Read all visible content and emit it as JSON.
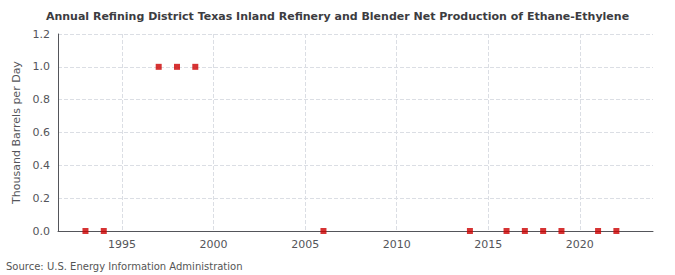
{
  "chart_data": {
    "type": "scatter",
    "title": "Annual Refining District Texas Inland Refinery and Blender Net Production of Ethane-Ethylene",
    "ylabel": "Thousand Barrels per Day",
    "annotation": "Source: U.S. Energy Information Administration",
    "x": [
      1993,
      1994,
      1997,
      1998,
      1999,
      2006,
      2014,
      2016,
      2017,
      2018,
      2019,
      2021,
      2022
    ],
    "values": [
      0.0,
      0.0,
      1.0,
      1.0,
      1.0,
      0.0,
      0.0,
      0.0,
      0.0,
      0.0,
      0.0,
      0.0,
      0.0
    ],
    "color": "#cc0000",
    "marker": "square",
    "xlim": [
      1991.5,
      2024
    ],
    "xticks": [
      1995,
      2000,
      2005,
      2010,
      2015,
      2020
    ],
    "ylim": [
      0.0,
      1.2
    ],
    "yticks": [
      {
        "value": 0.0,
        "label": "0.0"
      },
      0.2,
      0.4,
      0.6,
      0.8,
      {
        "value": 1.0,
        "label": "1.0"
      },
      1.2
    ],
    "grid": true
  }
}
